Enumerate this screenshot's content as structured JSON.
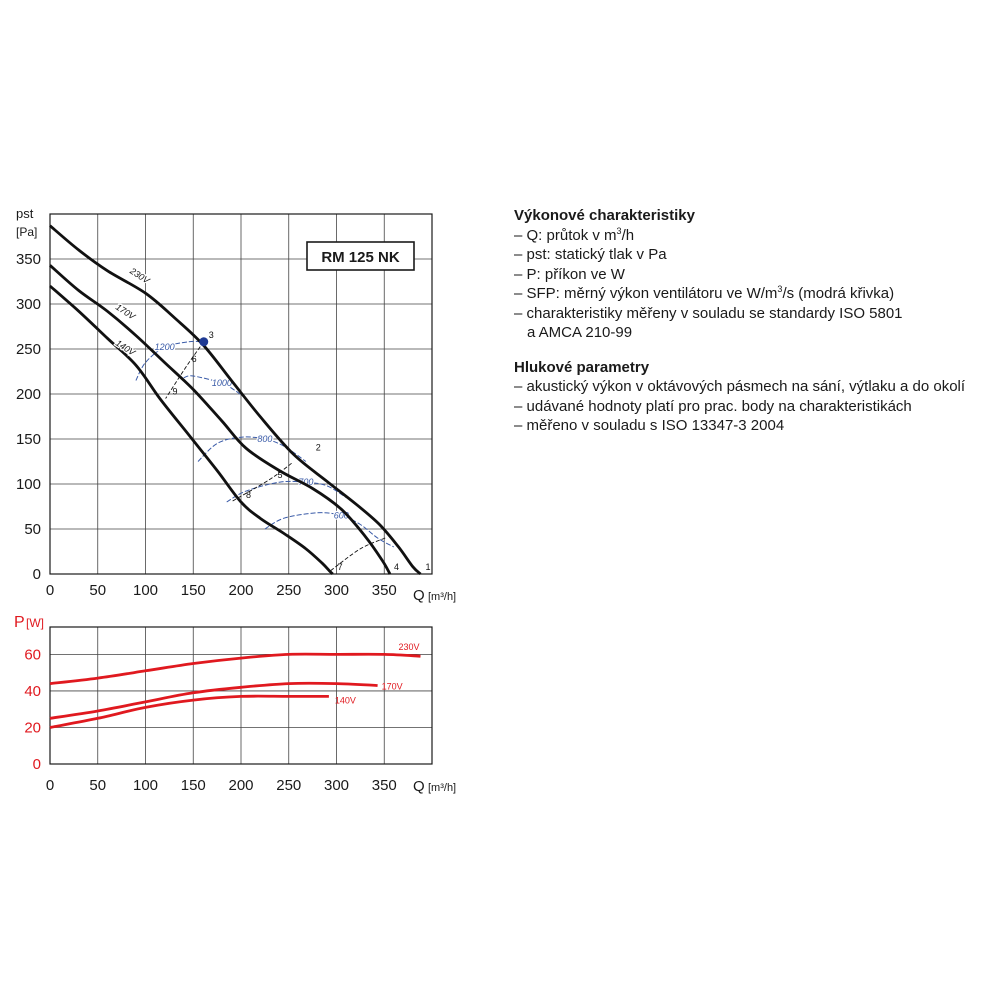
{
  "chart_data": [
    {
      "type": "line",
      "title": "RM 125 NK",
      "ylabel_top": "pst",
      "ylabel_unit": "[Pa]",
      "xlabel": "Q",
      "xlabel_unit": "[m³/h]",
      "xlim": [
        0,
        400
      ],
      "ylim": [
        0,
        400
      ],
      "xticks": [
        "0",
        "50",
        "100",
        "150",
        "200",
        "250",
        "300",
        "350"
      ],
      "yticks": [
        "0",
        "50",
        "100",
        "150",
        "200",
        "250",
        "300",
        "350"
      ],
      "grid": true,
      "series": [
        {
          "name": "230V",
          "color": "#111111",
          "label_pos": [
            83,
            335
          ],
          "points": [
            [
              0,
              387
            ],
            [
              30,
              360
            ],
            [
              60,
              337
            ],
            [
              100,
              312
            ],
            [
              130,
              285
            ],
            [
              160,
              255
            ],
            [
              190,
              215
            ],
            [
              220,
              175
            ],
            [
              255,
              133
            ],
            [
              290,
              103
            ],
            [
              320,
              78
            ],
            [
              345,
              55
            ],
            [
              365,
              30
            ],
            [
              380,
              8
            ],
            [
              388,
              0
            ]
          ]
        },
        {
          "name": "170V",
          "color": "#111111",
          "label_pos": [
            68,
            295
          ],
          "points": [
            [
              0,
              343
            ],
            [
              30,
              315
            ],
            [
              60,
              292
            ],
            [
              90,
              265
            ],
            [
              120,
              235
            ],
            [
              150,
              205
            ],
            [
              180,
              170
            ],
            [
              205,
              140
            ],
            [
              240,
              115
            ],
            [
              275,
              95
            ],
            [
              305,
              72
            ],
            [
              330,
              42
            ],
            [
              348,
              15
            ],
            [
              356,
              0
            ]
          ]
        },
        {
          "name": "140V",
          "color": "#111111",
          "label_pos": [
            68,
            255
          ],
          "points": [
            [
              0,
              320
            ],
            [
              30,
              292
            ],
            [
              60,
              262
            ],
            [
              90,
              232
            ],
            [
              115,
              195
            ],
            [
              145,
              155
            ],
            [
              175,
              115
            ],
            [
              200,
              80
            ],
            [
              220,
              62
            ],
            [
              245,
              45
            ],
            [
              268,
              28
            ],
            [
              285,
              12
            ],
            [
              293,
              3
            ],
            [
              296,
              0
            ]
          ]
        }
      ],
      "sfp_curves": [
        {
          "label": "1200",
          "color": "#3a5ba8",
          "points": [
            [
              90,
              215
            ],
            [
              100,
              235
            ],
            [
              120,
              252
            ],
            [
              145,
              258
            ],
            [
              160,
              258
            ]
          ]
        },
        {
          "label": "1000",
          "color": "#3a5ba8",
          "points": [
            [
              140,
              218
            ],
            [
              150,
              220
            ],
            [
              180,
              212
            ],
            [
              195,
              203
            ],
            [
              205,
              195
            ]
          ]
        },
        {
          "label": "800",
          "color": "#3a5ba8",
          "points": [
            [
              155,
              125
            ],
            [
              175,
              145
            ],
            [
              200,
              152
            ],
            [
              225,
              150
            ],
            [
              245,
              142
            ],
            [
              268,
              125
            ]
          ]
        },
        {
          "label": "700",
          "color": "#3a5ba8",
          "points": [
            [
              185,
              80
            ],
            [
              205,
              92
            ],
            [
              240,
              102
            ],
            [
              268,
              102
            ],
            [
              290,
              98
            ],
            [
              310,
              85
            ]
          ]
        },
        {
          "label": "600",
          "color": "#3a5ba8",
          "points": [
            [
              225,
              50
            ],
            [
              245,
              62
            ],
            [
              280,
              68
            ],
            [
              305,
              65
            ],
            [
              325,
              55
            ],
            [
              343,
              40
            ],
            [
              360,
              30
            ]
          ]
        }
      ],
      "work_lines": [
        {
          "points": [
            [
              161,
              258
            ],
            [
              143,
              231
            ],
            [
              121,
              195
            ]
          ]
        },
        {
          "points": [
            [
              253,
              123
            ],
            [
              230,
              105
            ],
            [
              191,
              81
            ]
          ]
        },
        {
          "points": [
            [
              351,
              40
            ],
            [
              325,
              28
            ],
            [
              293,
              3
            ]
          ]
        }
      ],
      "markers": [
        {
          "label": "1",
          "x": 388,
          "y": 0
        },
        {
          "label": "2",
          "x": 273,
          "y": 133
        },
        {
          "label": "3",
          "x": 161,
          "y": 258
        },
        {
          "label": "4",
          "x": 355,
          "y": 0
        },
        {
          "label": "5",
          "x": 233,
          "y": 102
        },
        {
          "label": "6",
          "x": 143,
          "y": 231
        },
        {
          "label": "7",
          "x": 296,
          "y": 0
        },
        {
          "label": "8",
          "x": 200,
          "y": 80
        },
        {
          "label": "9",
          "x": 123,
          "y": 195
        }
      ],
      "highlight_point": {
        "x": 161,
        "y": 258,
        "color": "#1f3a93"
      }
    },
    {
      "type": "line",
      "ylabel": "P",
      "ylabel_unit": "[W]",
      "xlabel": "Q",
      "xlabel_unit": "[m³/h]",
      "xlim": [
        0,
        400
      ],
      "ylim": [
        0,
        75
      ],
      "xticks": [
        "0",
        "50",
        "100",
        "150",
        "200",
        "250",
        "300",
        "350"
      ],
      "yticks": [
        "0",
        "20",
        "40",
        "60"
      ],
      "grid": true,
      "series": [
        {
          "name": "230V",
          "color": "#e0191f",
          "points": [
            [
              0,
              44
            ],
            [
              50,
              47
            ],
            [
              100,
              51
            ],
            [
              150,
              55
            ],
            [
              200,
              58
            ],
            [
              250,
              60
            ],
            [
              300,
              60
            ],
            [
              350,
              60
            ],
            [
              388,
              59
            ]
          ]
        },
        {
          "name": "170V",
          "color": "#e0191f",
          "points": [
            [
              0,
              25
            ],
            [
              50,
              29
            ],
            [
              100,
              34
            ],
            [
              150,
              39
            ],
            [
              200,
              42
            ],
            [
              250,
              44
            ],
            [
              300,
              44
            ],
            [
              343,
              43
            ]
          ]
        },
        {
          "name": "140V",
          "color": "#e0191f",
          "points": [
            [
              0,
              20
            ],
            [
              50,
              25
            ],
            [
              100,
              31
            ],
            [
              150,
              35
            ],
            [
              200,
              37
            ],
            [
              250,
              37
            ],
            [
              292,
              37
            ]
          ]
        }
      ]
    }
  ],
  "info": {
    "perf_title": "Výkonové charakteristiky",
    "perf_items": [
      "– Q: průtok v m",
      "– pst: statický tlak v Pa",
      "– P: příkon ve W",
      "– SFP: měrný výkon ventilátoru ve W/m",
      "– charakteristiky měřeny v souladu se standardy ISO 5801",
      "a AMCA 210-99"
    ],
    "perf_sup": "3",
    "perf_item0_tail": "/h",
    "perf_item3_tail": "/s (modrá křivka)",
    "noise_title": "Hlukové parametry",
    "noise_items": [
      "– akustický výkon v oktávových pásmech na sání, výtlaku a do okolí",
      "– udávané hodnoty platí pro prac. body na charakteristikách",
      "– měřeno v souladu s ISO 13347-3 2004"
    ]
  }
}
